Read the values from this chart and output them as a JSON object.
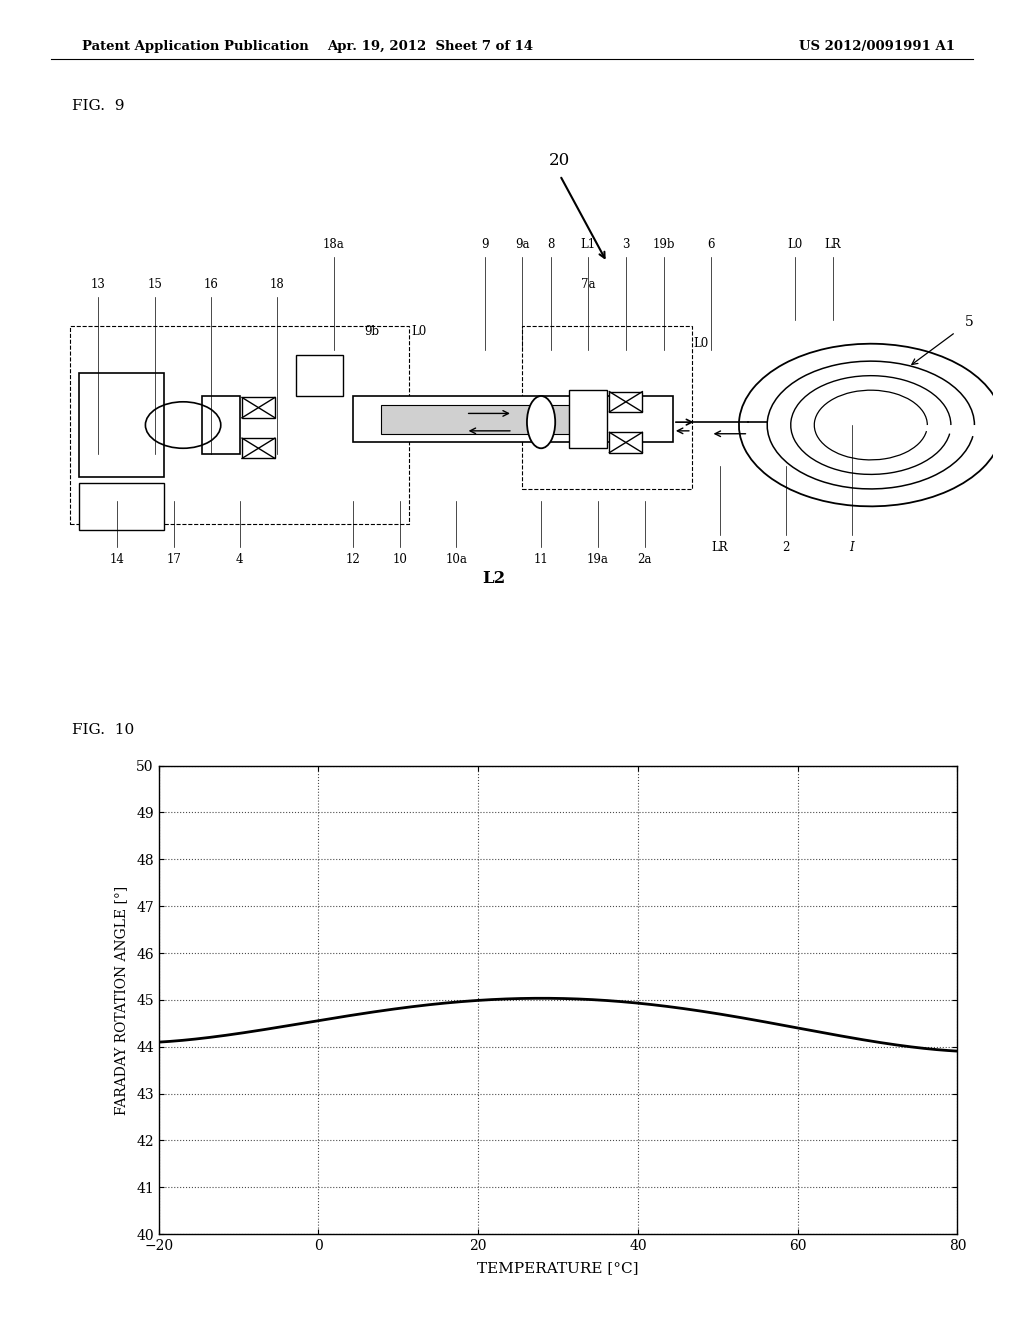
{
  "bg_color": "#ffffff",
  "header_left": "Patent Application Publication",
  "header_mid": "Apr. 19, 2012  Sheet 7 of 14",
  "header_right": "US 2012/0091991 A1",
  "fig9_label": "FIG.  9",
  "fig10_label": "FIG.  10",
  "graph_xlabel": "TEMPERATURE [°C]",
  "graph_ylabel": "FARADAY ROTATION ANGLE [°]",
  "graph_xlim": [
    -20,
    80
  ],
  "graph_ylim": [
    40,
    50
  ],
  "graph_xticks": [
    -20,
    0,
    20,
    40,
    60,
    80
  ],
  "graph_yticks": [
    40,
    41,
    42,
    43,
    44,
    45,
    46,
    47,
    48,
    49,
    50
  ],
  "curve_color": "#000000",
  "curve_x": [
    -20,
    -10,
    0,
    10,
    20,
    30,
    40,
    50,
    60,
    70,
    80
  ],
  "curve_y": [
    44.08,
    44.32,
    44.57,
    44.78,
    44.97,
    45.03,
    44.97,
    44.72,
    44.38,
    44.08,
    43.92
  ]
}
